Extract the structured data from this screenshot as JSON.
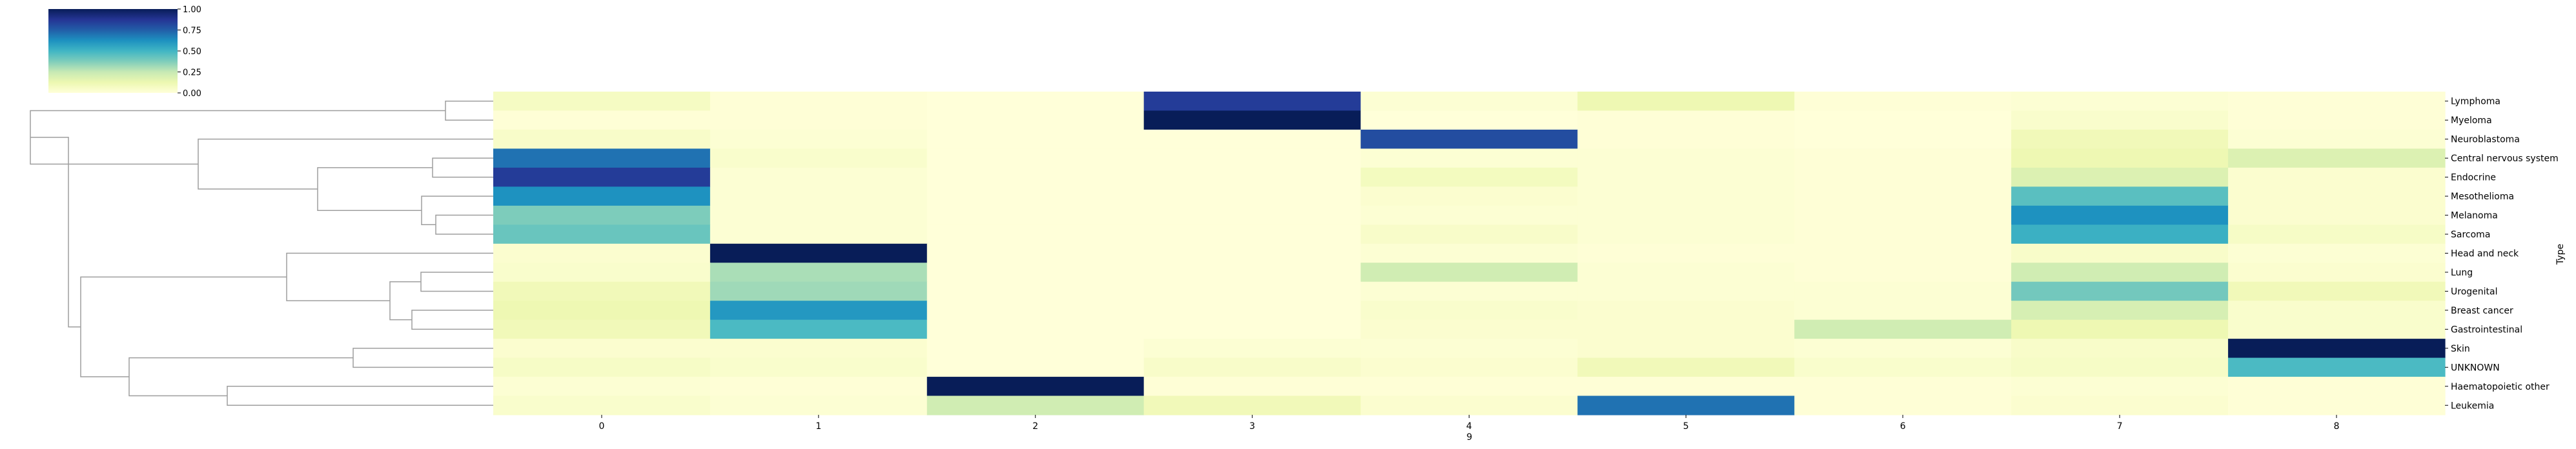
{
  "chart_data": {
    "type": "heatmap",
    "title": "",
    "xlabel": "9",
    "ylabel": "Type",
    "columns": [
      "0",
      "1",
      "2",
      "3",
      "4",
      "5",
      "6",
      "7",
      "8"
    ],
    "rows": [
      "Lymphoma",
      "Myeloma",
      "Neuroblastoma",
      "Central nervous system",
      "Endocrine",
      "Mesothelioma",
      "Melanoma",
      "Sarcoma",
      "Head and neck",
      "Lung",
      "Urogenital",
      "Breast cancer",
      "Gastrointestinal",
      "Skin",
      "UNKNOWN",
      "Haematopoietic other",
      "Leukemia"
    ],
    "values": [
      [
        0.07,
        0.01,
        0.0,
        0.85,
        0.02,
        0.12,
        0.01,
        0.02,
        0.01
      ],
      [
        0.01,
        0.01,
        0.0,
        1.0,
        0.0,
        0.01,
        0.0,
        0.04,
        0.01
      ],
      [
        0.05,
        0.02,
        0.0,
        0.0,
        0.8,
        0.01,
        0.0,
        0.1,
        0.02
      ],
      [
        0.7,
        0.04,
        0.0,
        0.0,
        0.02,
        0.02,
        0.01,
        0.12,
        0.18
      ],
      [
        0.85,
        0.02,
        0.0,
        0.0,
        0.08,
        0.02,
        0.01,
        0.18,
        0.03
      ],
      [
        0.62,
        0.02,
        0.0,
        0.0,
        0.03,
        0.02,
        0.01,
        0.45,
        0.03
      ],
      [
        0.38,
        0.02,
        0.0,
        0.0,
        0.02,
        0.02,
        0.01,
        0.62,
        0.03
      ],
      [
        0.42,
        0.02,
        0.0,
        0.0,
        0.05,
        0.02,
        0.01,
        0.52,
        0.06
      ],
      [
        0.03,
        1.0,
        0.0,
        0.0,
        0.02,
        0.01,
        0.01,
        0.05,
        0.02
      ],
      [
        0.04,
        0.3,
        0.0,
        0.0,
        0.22,
        0.02,
        0.01,
        0.22,
        0.03
      ],
      [
        0.1,
        0.32,
        0.0,
        0.0,
        0.02,
        0.02,
        0.02,
        0.4,
        0.1
      ],
      [
        0.12,
        0.6,
        0.0,
        0.0,
        0.04,
        0.03,
        0.02,
        0.2,
        0.04
      ],
      [
        0.1,
        0.48,
        0.0,
        0.0,
        0.03,
        0.03,
        0.22,
        0.12,
        0.04
      ],
      [
        0.03,
        0.03,
        0.0,
        0.02,
        0.02,
        0.03,
        0.02,
        0.05,
        1.0
      ],
      [
        0.06,
        0.04,
        0.0,
        0.05,
        0.03,
        0.1,
        0.04,
        0.06,
        0.48
      ],
      [
        0.02,
        0.01,
        1.0,
        0.01,
        0.01,
        0.01,
        0.01,
        0.02,
        0.01
      ],
      [
        0.04,
        0.02,
        0.22,
        0.1,
        0.03,
        0.7,
        0.01,
        0.03,
        0.01
      ]
    ],
    "colorbar": {
      "range": [
        0,
        1
      ],
      "ticks": [
        "0.00",
        "0.25",
        "0.50",
        "0.75",
        "1.00"
      ]
    },
    "colormap": [
      "#ffffd9",
      "#edf8b1",
      "#c7e9b4",
      "#7fcdbb",
      "#41b6c4",
      "#1d91c0",
      "#225ea8",
      "#253494",
      "#081d58"
    ],
    "dendrogram_color": "#9e9e9e",
    "grid": false
  }
}
